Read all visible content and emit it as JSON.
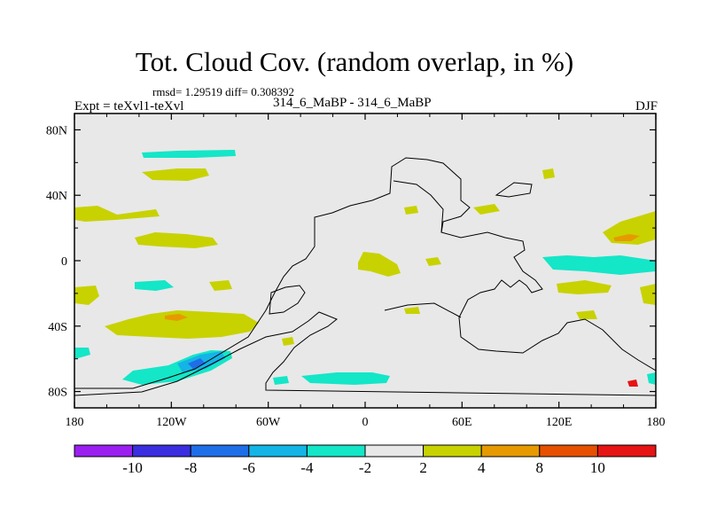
{
  "chart_data": {
    "type": "contour map",
    "title": "Tot. Cloud Cov. (random overlap, in %)",
    "stats_text": "rmsd= 1.29519 diff= 0.308392",
    "experiment_label": "Expt = teXvl1-teXvl",
    "period_label": "314_6_MaBP - 314_6_MaBP",
    "season": "DJF",
    "x_ticks": [
      "180",
      "120W",
      "60W",
      "0",
      "60E",
      "120E",
      "180"
    ],
    "y_ticks": [
      "80N",
      "40N",
      "0",
      "40S",
      "80S"
    ],
    "lon_range": [
      -180,
      180
    ],
    "lat_range": [
      -90,
      90
    ],
    "colorbar": {
      "levels": [
        "-10",
        "-8",
        "-6",
        "-4",
        "-2",
        "2",
        "4",
        "8",
        "10"
      ],
      "colors": [
        "#9a1ff0",
        "#3a2ee0",
        "#1e6ee8",
        "#14b4e6",
        "#14e6c8",
        "#e8e8e8",
        "#c8d200",
        "#e69a00",
        "#e65000",
        "#e61414"
      ]
    },
    "anomaly_regions": [
      {
        "name": "north-pacific-band",
        "category": "-2 to -4",
        "color": "#14e6c8",
        "lon": -140,
        "lat": 66
      },
      {
        "name": "north-pacific-patch",
        "category": "2 to 4",
        "color": "#c8d200",
        "lon": -120,
        "lat": 54
      },
      {
        "name": "central-pacific-patch",
        "category": "2 to 4",
        "color": "#c8d200",
        "lon": -120,
        "lat": 15
      },
      {
        "name": "subtropical-pacific",
        "category": "2 to 4",
        "color": "#c8d200",
        "lon": -120,
        "lat": -36
      },
      {
        "name": "south-pacific-core",
        "category": "4 to 8",
        "color": "#e69a00",
        "lon": -118,
        "lat": -36
      },
      {
        "name": "southern-ocean-deficit",
        "category": "-4 to -6",
        "color": "#14b4e6",
        "lon": -105,
        "lat": -61
      },
      {
        "name": "southern-ocean-core",
        "category": "-6 to -8",
        "color": "#1e6ee8",
        "lon": -108,
        "lat": -64
      },
      {
        "name": "tethys-equatorial",
        "category": "2 to 4",
        "color": "#c8d200",
        "lon": 17,
        "lat": 2
      },
      {
        "name": "south-atlantic-band",
        "category": "-2 to -4",
        "color": "#14e6c8",
        "lon": -22,
        "lat": -71
      },
      {
        "name": "east-equatorial-band",
        "category": "-2 to -4",
        "color": "#14e6c8",
        "lon": 150,
        "lat": 0
      },
      {
        "name": "east-north-patch",
        "category": "2 to 4",
        "color": "#c8d200",
        "lon": 165,
        "lat": 20
      },
      {
        "name": "east-north-core",
        "category": "4 to 8",
        "color": "#e69a00",
        "lon": 160,
        "lat": 14
      }
    ]
  }
}
